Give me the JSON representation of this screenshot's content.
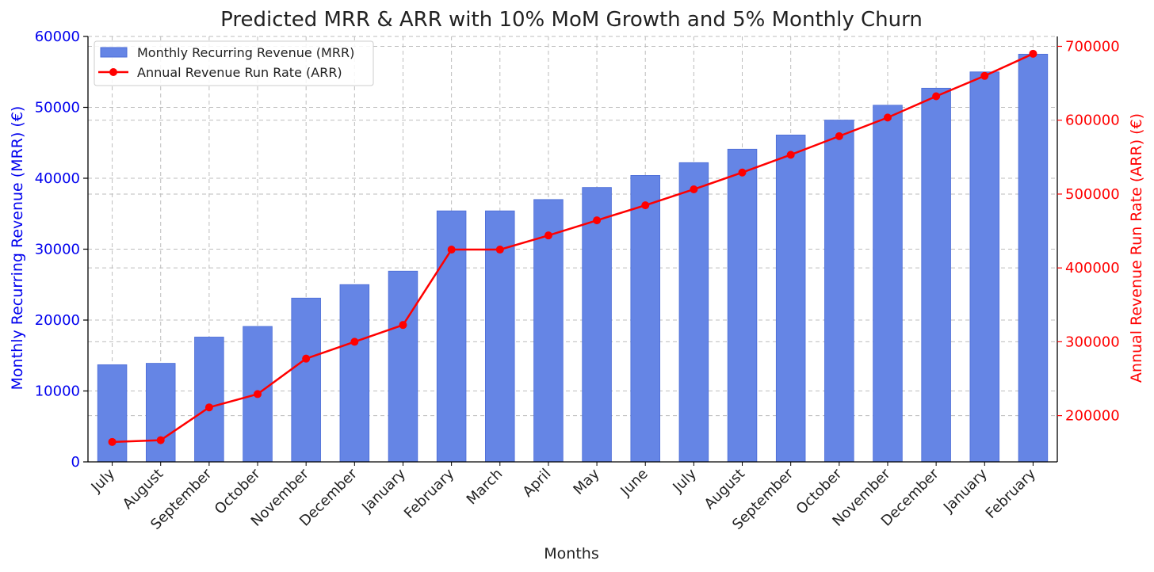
{
  "chart_data": {
    "type": "bar",
    "title": "Predicted MRR & ARR with 10% MoM Growth and 5% Monthly Churn",
    "xlabel": "Months",
    "ylabel_left": "Monthly Recurring Revenue (MRR) (€)",
    "ylabel_right": "Annual Revenue Run Rate (ARR) (€)",
    "categories": [
      "July",
      "August",
      "September",
      "October",
      "November",
      "December",
      "January",
      "February",
      "March",
      "April",
      "May",
      "June",
      "July",
      "August",
      "September",
      "October",
      "November",
      "December",
      "January",
      "February"
    ],
    "series": [
      {
        "name": "Monthly Recurring Revenue (MRR)",
        "type": "bar",
        "axis": "left",
        "color": "#6585e5",
        "values": [
          13700,
          13900,
          17600,
          19100,
          23100,
          25000,
          26900,
          35400,
          35400,
          37000,
          38700,
          40400,
          42200,
          44100,
          46100,
          48200,
          50300,
          52700,
          55000,
          57500
        ]
      },
      {
        "name": "Annual Revenue Run Rate (ARR)",
        "type": "line",
        "axis": "right",
        "color": "#ff0000",
        "values": [
          164400,
          166800,
          211200,
          229200,
          277200,
          300000,
          322800,
          424800,
          424800,
          444000,
          464400,
          484800,
          506400,
          529200,
          553200,
          578400,
          603600,
          632400,
          660000,
          690000
        ]
      }
    ],
    "ylim_left": [
      0,
      60000
    ],
    "yticks_left": [
      "0",
      "10000",
      "20000",
      "30000",
      "40000",
      "50000",
      "60000"
    ],
    "ylim_right": [
      137400,
      713400
    ],
    "yticks_right": [
      "200000",
      "300000",
      "400000",
      "500000",
      "600000",
      "700000"
    ],
    "grid": true,
    "legend_position": "top-left",
    "colors": {
      "left_axis": "#0000ee",
      "right_axis": "#ff0000"
    }
  }
}
